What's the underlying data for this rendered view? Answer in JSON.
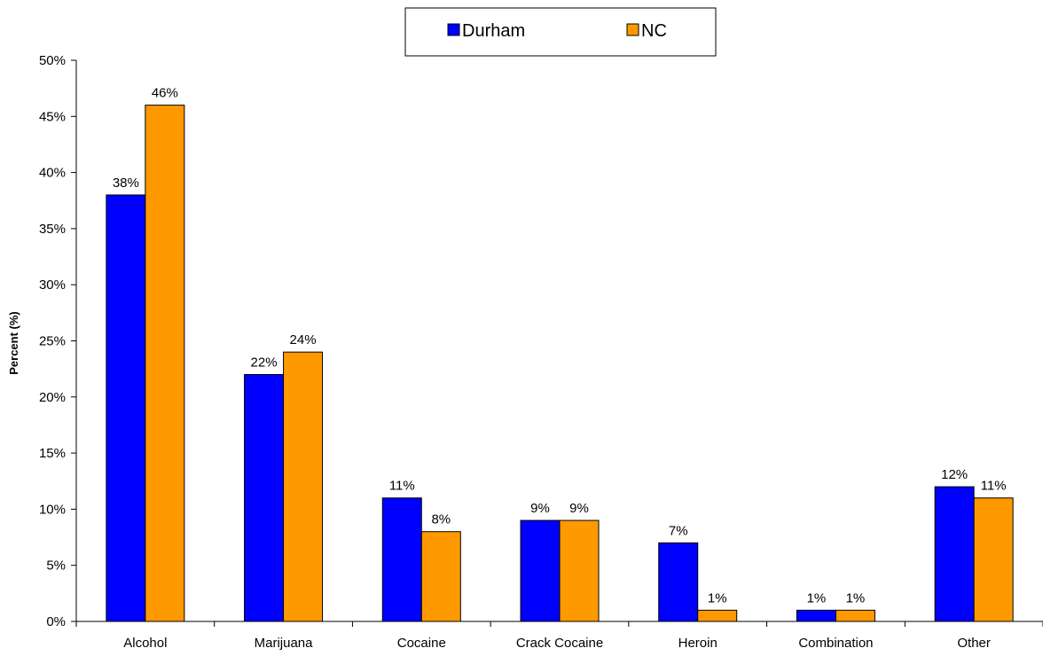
{
  "chart_data": {
    "type": "bar",
    "categories": [
      "Alcohol",
      "Marijuana",
      "Cocaine",
      "Crack Cocaine",
      "Heroin",
      "Combination",
      "Other"
    ],
    "series": [
      {
        "name": "Durham",
        "values": [
          38,
          22,
          11,
          9,
          7,
          1,
          12
        ],
        "color": "#0000FF"
      },
      {
        "name": "NC",
        "values": [
          46,
          24,
          8,
          9,
          1,
          1,
          11
        ],
        "color": "#FF9900"
      }
    ],
    "title": "",
    "xlabel": "",
    "ylabel": "Percent (%)",
    "ylim": [
      0,
      50
    ],
    "yticks": [
      "0%",
      "5%",
      "10%",
      "15%",
      "20%",
      "25%",
      "30%",
      "35%",
      "40%",
      "45%",
      "50%"
    ],
    "data_labels": {
      "Durham": [
        "38%",
        "22%",
        "11%",
        "9%",
        "7%",
        "1%",
        "12%"
      ],
      "NC": [
        "46%",
        "24%",
        "8%",
        "9%",
        "1%",
        "1%",
        "11%"
      ]
    },
    "legend_position": "top",
    "grid": false
  }
}
